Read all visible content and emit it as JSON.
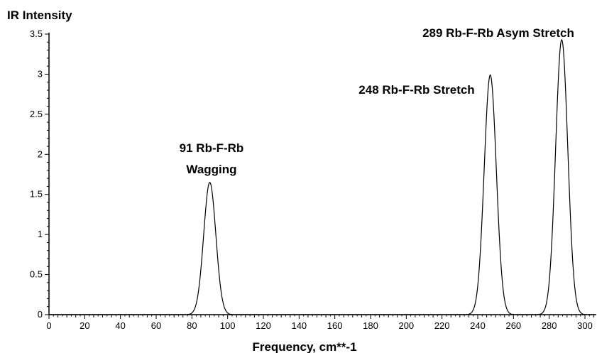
{
  "chart_data": {
    "type": "line",
    "title": "",
    "xlabel": "Frequency, cm**-1",
    "ylabel": "IR Intensity",
    "xlim": [
      0,
      305
    ],
    "ylim": [
      0,
      3.5
    ],
    "xticks": [
      0,
      20,
      40,
      60,
      80,
      100,
      120,
      140,
      160,
      180,
      200,
      220,
      240,
      260,
      280,
      300
    ],
    "yticks": [
      0,
      0.5,
      1,
      1.5,
      2,
      2.5,
      3,
      3.5
    ],
    "grid": false,
    "legend": "none",
    "line_color": "#000000",
    "peaks": [
      {
        "frequency": 90,
        "intensity": 1.65,
        "label_lines": [
          "91 Rb-F-Rb",
          "Wagging"
        ]
      },
      {
        "frequency": 247,
        "intensity": 2.99,
        "label_lines": [
          "248 Rb-F-Rb Stretch"
        ]
      },
      {
        "frequency": 287,
        "intensity": 3.43,
        "label_lines": [
          "289 Rb-F-Rb Asym Stretch"
        ]
      }
    ]
  }
}
